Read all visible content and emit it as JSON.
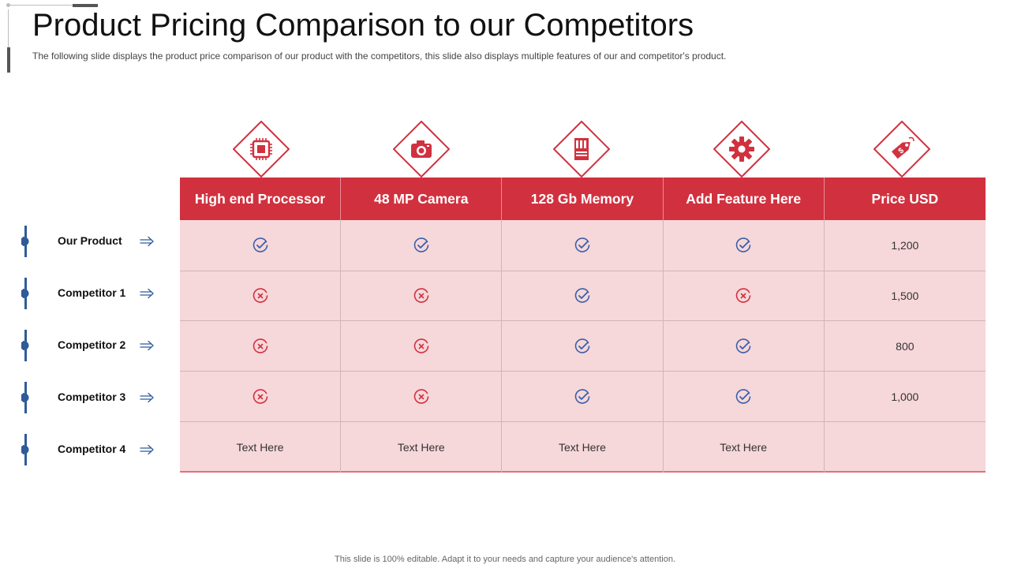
{
  "title": "Product Pricing Comparison to our Competitors",
  "subtitle": "The following slide displays the product price comparison of our product with the competitors, this slide also displays multiple features of our and competitor's product.",
  "colors": {
    "accent_red": "#d1313f",
    "row_fill": "#f6d7da",
    "check_blue": "#3a5fa8",
    "cross_red": "#d1313f",
    "label_blue": "#2e5b9a"
  },
  "columns": [
    {
      "label": "High end Processor",
      "icon": "processor-chip-icon"
    },
    {
      "label": "48 MP Camera",
      "icon": "camera-icon"
    },
    {
      "label": "128 Gb Memory",
      "icon": "memory-card-icon"
    },
    {
      "label": "Add Feature Here",
      "icon": "gear-icon"
    },
    {
      "label": "Price USD",
      "icon": "price-tag-icon"
    }
  ],
  "rows": [
    {
      "name": "Our Product",
      "cells": [
        "check",
        "check",
        "check",
        "check"
      ],
      "price": "1,200"
    },
    {
      "name": "Competitor 1",
      "cells": [
        "cross",
        "cross",
        "check",
        "cross"
      ],
      "price": "1,500"
    },
    {
      "name": "Competitor 2",
      "cells": [
        "cross",
        "cross",
        "check",
        "check"
      ],
      "price": "800"
    },
    {
      "name": "Competitor 3",
      "cells": [
        "cross",
        "cross",
        "check",
        "check"
      ],
      "price": "1,000"
    },
    {
      "name": "Competitor 4",
      "cells": [
        "Text Here",
        "Text Here",
        "Text Here",
        "Text Here"
      ],
      "price": ""
    }
  ],
  "footer": "This slide is 100% editable. Adapt it to your needs and capture your audience's attention."
}
